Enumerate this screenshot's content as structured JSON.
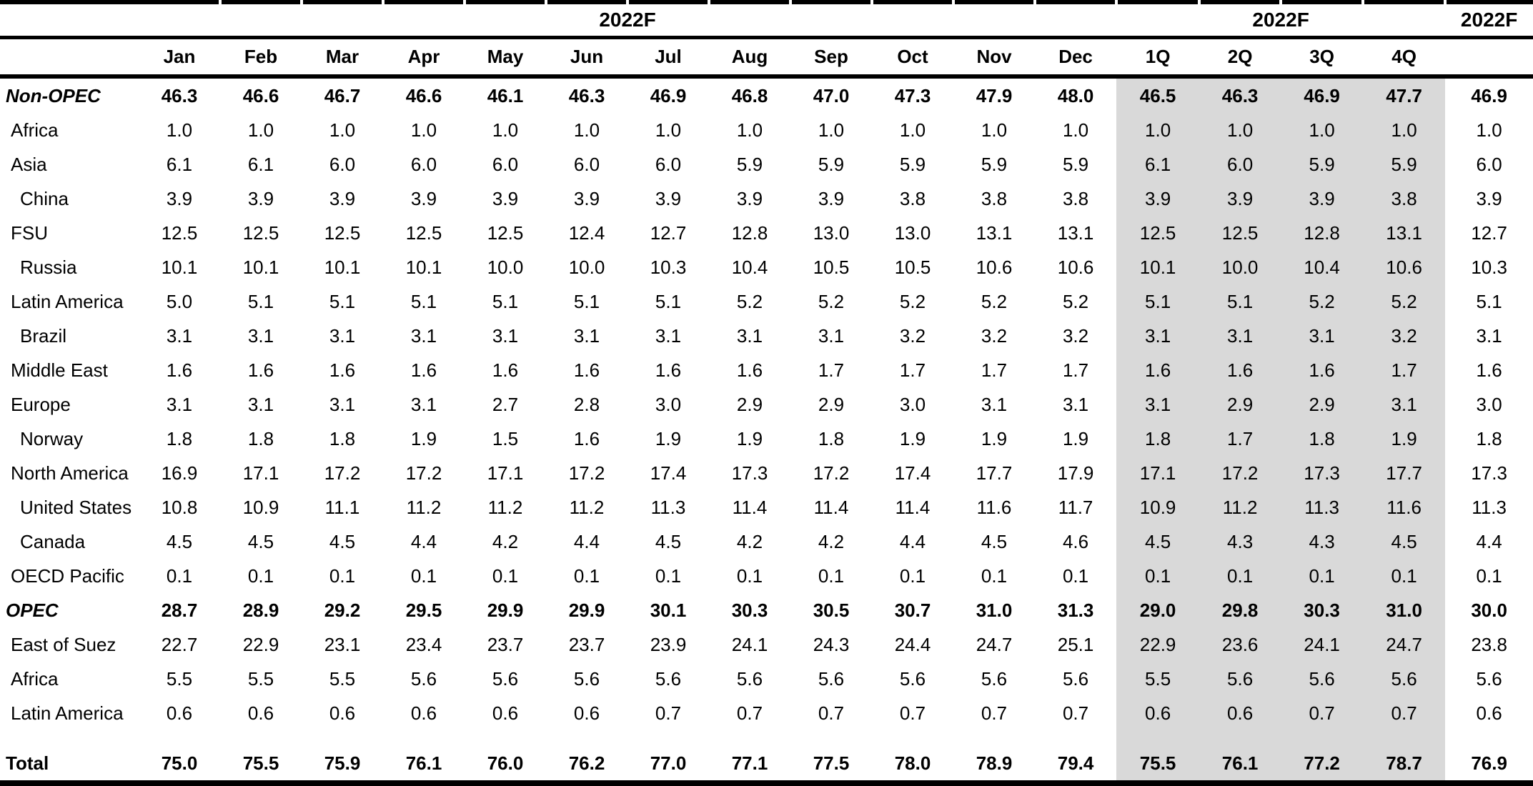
{
  "header": {
    "year_labels": [
      "2022F",
      "2022F",
      "2022F"
    ],
    "columns": [
      "Jan",
      "Feb",
      "Mar",
      "Apr",
      "May",
      "Jun",
      "Jul",
      "Aug",
      "Sep",
      "Oct",
      "Nov",
      "Dec",
      "1Q",
      "2Q",
      "3Q",
      "4Q"
    ]
  },
  "colors": {
    "quarter_shading": "#d9d9d9",
    "text": "#000000",
    "background": "#ffffff"
  },
  "rows": [
    {
      "label": "Non-OPEC",
      "indent": 0,
      "bold": true,
      "italic": true,
      "values": [
        "46.3",
        "46.6",
        "46.7",
        "46.6",
        "46.1",
        "46.3",
        "46.9",
        "46.8",
        "47.0",
        "47.3",
        "47.9",
        "48.0",
        "46.5",
        "46.3",
        "46.9",
        "47.7",
        "46.9"
      ]
    },
    {
      "label": "Africa",
      "indent": 1,
      "bold": false,
      "italic": false,
      "values": [
        "1.0",
        "1.0",
        "1.0",
        "1.0",
        "1.0",
        "1.0",
        "1.0",
        "1.0",
        "1.0",
        "1.0",
        "1.0",
        "1.0",
        "1.0",
        "1.0",
        "1.0",
        "1.0",
        "1.0"
      ]
    },
    {
      "label": "Asia",
      "indent": 1,
      "bold": false,
      "italic": false,
      "values": [
        "6.1",
        "6.1",
        "6.0",
        "6.0",
        "6.0",
        "6.0",
        "6.0",
        "5.9",
        "5.9",
        "5.9",
        "5.9",
        "5.9",
        "6.1",
        "6.0",
        "5.9",
        "5.9",
        "6.0"
      ]
    },
    {
      "label": "China",
      "indent": 2,
      "bold": false,
      "italic": false,
      "values": [
        "3.9",
        "3.9",
        "3.9",
        "3.9",
        "3.9",
        "3.9",
        "3.9",
        "3.9",
        "3.9",
        "3.8",
        "3.8",
        "3.8",
        "3.9",
        "3.9",
        "3.9",
        "3.8",
        "3.9"
      ]
    },
    {
      "label": "FSU",
      "indent": 1,
      "bold": false,
      "italic": false,
      "values": [
        "12.5",
        "12.5",
        "12.5",
        "12.5",
        "12.5",
        "12.4",
        "12.7",
        "12.8",
        "13.0",
        "13.0",
        "13.1",
        "13.1",
        "12.5",
        "12.5",
        "12.8",
        "13.1",
        "12.7"
      ]
    },
    {
      "label": "Russia",
      "indent": 2,
      "bold": false,
      "italic": false,
      "values": [
        "10.1",
        "10.1",
        "10.1",
        "10.1",
        "10.0",
        "10.0",
        "10.3",
        "10.4",
        "10.5",
        "10.5",
        "10.6",
        "10.6",
        "10.1",
        "10.0",
        "10.4",
        "10.6",
        "10.3"
      ]
    },
    {
      "label": "Latin America",
      "indent": 1,
      "bold": false,
      "italic": false,
      "values": [
        "5.0",
        "5.1",
        "5.1",
        "5.1",
        "5.1",
        "5.1",
        "5.1",
        "5.2",
        "5.2",
        "5.2",
        "5.2",
        "5.2",
        "5.1",
        "5.1",
        "5.2",
        "5.2",
        "5.1"
      ]
    },
    {
      "label": "Brazil",
      "indent": 2,
      "bold": false,
      "italic": false,
      "values": [
        "3.1",
        "3.1",
        "3.1",
        "3.1",
        "3.1",
        "3.1",
        "3.1",
        "3.1",
        "3.1",
        "3.2",
        "3.2",
        "3.2",
        "3.1",
        "3.1",
        "3.1",
        "3.2",
        "3.1"
      ]
    },
    {
      "label": "Middle East",
      "indent": 1,
      "bold": false,
      "italic": false,
      "values": [
        "1.6",
        "1.6",
        "1.6",
        "1.6",
        "1.6",
        "1.6",
        "1.6",
        "1.6",
        "1.7",
        "1.7",
        "1.7",
        "1.7",
        "1.6",
        "1.6",
        "1.6",
        "1.7",
        "1.6"
      ]
    },
    {
      "label": "Europe",
      "indent": 1,
      "bold": false,
      "italic": false,
      "values": [
        "3.1",
        "3.1",
        "3.1",
        "3.1",
        "2.7",
        "2.8",
        "3.0",
        "2.9",
        "2.9",
        "3.0",
        "3.1",
        "3.1",
        "3.1",
        "2.9",
        "2.9",
        "3.1",
        "3.0"
      ]
    },
    {
      "label": "Norway",
      "indent": 2,
      "bold": false,
      "italic": false,
      "values": [
        "1.8",
        "1.8",
        "1.8",
        "1.9",
        "1.5",
        "1.6",
        "1.9",
        "1.9",
        "1.8",
        "1.9",
        "1.9",
        "1.9",
        "1.8",
        "1.7",
        "1.8",
        "1.9",
        "1.8"
      ]
    },
    {
      "label": "North America",
      "indent": 1,
      "bold": false,
      "italic": false,
      "values": [
        "16.9",
        "17.1",
        "17.2",
        "17.2",
        "17.1",
        "17.2",
        "17.4",
        "17.3",
        "17.2",
        "17.4",
        "17.7",
        "17.9",
        "17.1",
        "17.2",
        "17.3",
        "17.7",
        "17.3"
      ]
    },
    {
      "label": "United States",
      "indent": 2,
      "bold": false,
      "italic": false,
      "values": [
        "10.8",
        "10.9",
        "11.1",
        "11.2",
        "11.2",
        "11.2",
        "11.3",
        "11.4",
        "11.4",
        "11.4",
        "11.6",
        "11.7",
        "10.9",
        "11.2",
        "11.3",
        "11.6",
        "11.3"
      ]
    },
    {
      "label": "Canada",
      "indent": 2,
      "bold": false,
      "italic": false,
      "values": [
        "4.5",
        "4.5",
        "4.5",
        "4.4",
        "4.2",
        "4.4",
        "4.5",
        "4.2",
        "4.2",
        "4.4",
        "4.5",
        "4.6",
        "4.5",
        "4.3",
        "4.3",
        "4.5",
        "4.4"
      ]
    },
    {
      "label": "OECD Pacific",
      "indent": 1,
      "bold": false,
      "italic": false,
      "values": [
        "0.1",
        "0.1",
        "0.1",
        "0.1",
        "0.1",
        "0.1",
        "0.1",
        "0.1",
        "0.1",
        "0.1",
        "0.1",
        "0.1",
        "0.1",
        "0.1",
        "0.1",
        "0.1",
        "0.1"
      ]
    },
    {
      "label": "OPEC",
      "indent": 0,
      "bold": true,
      "italic": true,
      "values": [
        "28.7",
        "28.9",
        "29.2",
        "29.5",
        "29.9",
        "29.9",
        "30.1",
        "30.3",
        "30.5",
        "30.7",
        "31.0",
        "31.3",
        "29.0",
        "29.8",
        "30.3",
        "31.0",
        "30.0"
      ]
    },
    {
      "label": "East of Suez",
      "indent": 1,
      "bold": false,
      "italic": false,
      "values": [
        "22.7",
        "22.9",
        "23.1",
        "23.4",
        "23.7",
        "23.7",
        "23.9",
        "24.1",
        "24.3",
        "24.4",
        "24.7",
        "25.1",
        "22.9",
        "23.6",
        "24.1",
        "24.7",
        "23.8"
      ]
    },
    {
      "label": "Africa",
      "indent": 1,
      "bold": false,
      "italic": false,
      "values": [
        "5.5",
        "5.5",
        "5.5",
        "5.6",
        "5.6",
        "5.6",
        "5.6",
        "5.6",
        "5.6",
        "5.6",
        "5.6",
        "5.6",
        "5.5",
        "5.6",
        "5.6",
        "5.6",
        "5.6"
      ]
    },
    {
      "label": "Latin America",
      "indent": 1,
      "bold": false,
      "italic": false,
      "values": [
        "0.6",
        "0.6",
        "0.6",
        "0.6",
        "0.6",
        "0.6",
        "0.7",
        "0.7",
        "0.7",
        "0.7",
        "0.7",
        "0.7",
        "0.6",
        "0.6",
        "0.7",
        "0.7",
        "0.6"
      ]
    },
    {
      "label": "Total",
      "indent": 0,
      "bold": true,
      "italic": false,
      "total": true,
      "gap_before": true,
      "values": [
        "75.0",
        "75.5",
        "75.9",
        "76.1",
        "76.0",
        "76.2",
        "77.0",
        "77.1",
        "77.5",
        "78.0",
        "78.9",
        "79.4",
        "75.5",
        "76.1",
        "77.2",
        "78.7",
        "76.9"
      ]
    }
  ]
}
